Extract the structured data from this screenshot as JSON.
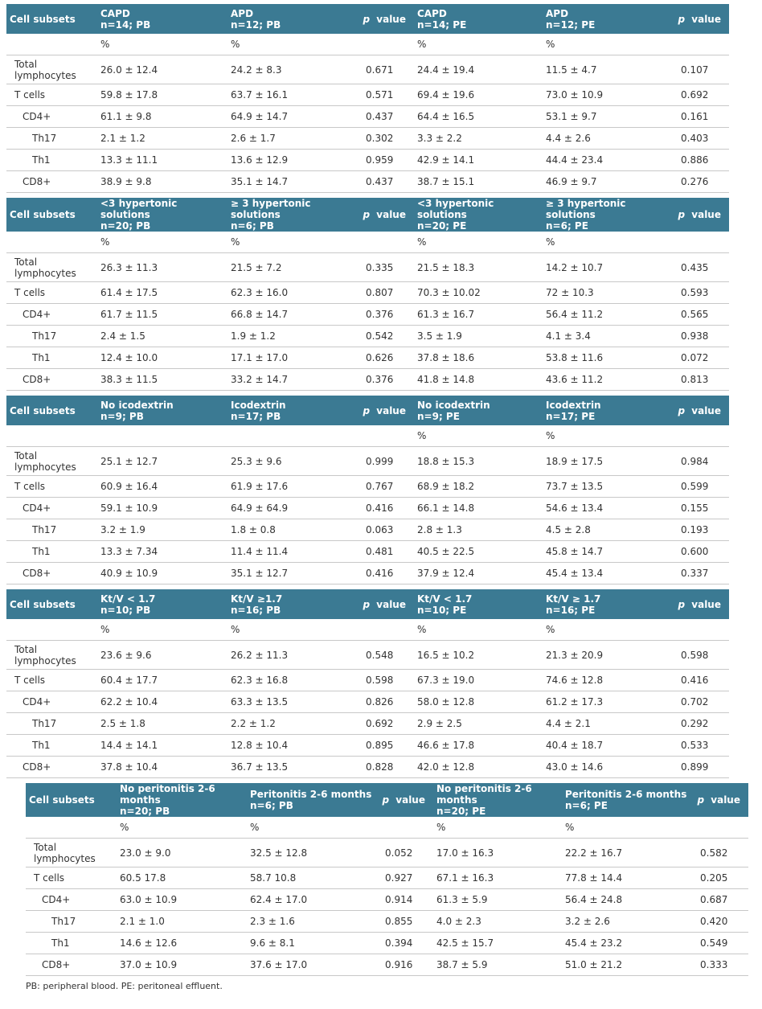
{
  "tables": [
    {
      "header": [
        "Cell subsets",
        "CAPD\nn=14; PB",
        "APD\nn=12; PB",
        "p value",
        "CAPD\nn=14; PE",
        "APD\nn=12; PE",
        "p value"
      ],
      "units": [
        null,
        "%",
        "%",
        null,
        "%",
        "%",
        null
      ],
      "rows": [
        [
          "Total lymphocytes",
          "26.0 ± 12.4",
          "24.2 ± 8.3",
          "0.671",
          "24.4 ± 19.4",
          "11.5 ± 4.7",
          "0.107"
        ],
        [
          "T cells",
          "59.8 ± 17.8",
          "63.7 ± 16.1",
          "0.571",
          "69.4 ± 19.6",
          "73.0 ± 10.9",
          "0.692"
        ],
        [
          "CD4+",
          "61.1 ± 9.8",
          "64.9 ± 14.7",
          "0.437",
          "64.4 ± 16.5",
          "53.1 ± 9.7",
          "0.161"
        ],
        [
          "Th17",
          "2.1 ± 1.2",
          "2.6 ± 1.7",
          "0.302",
          "3.3 ± 2.2",
          "4.4 ± 2.6",
          "0.403"
        ],
        [
          "Th1",
          "13.3 ± 11.1",
          "13.6 ± 12.9",
          "0.959",
          "42.9 ± 14.1",
          "44.4 ± 23.4",
          "0.886"
        ],
        [
          "CD8+",
          "38.9 ± 9.8",
          "35.1 ± 14.7",
          "0.437",
          "38.7 ± 15.1",
          "46.9 ± 9.7",
          "0.276"
        ]
      ]
    },
    {
      "header": [
        "Cell subsets",
        "<3 hypertonic solutions\nn=20; PB",
        "≥ 3 hypertonic solutions\nn=6; PB",
        "p value",
        "<3 hypertonic solutions\nn=20; PE",
        "≥ 3 hypertonic solutions\nn=6; PE",
        "p value"
      ],
      "units": [
        null,
        "%",
        "%",
        null,
        "%",
        "%",
        null
      ],
      "rows": [
        [
          "Total lymphocytes",
          "26.3 ± 11.3",
          "21.5 ± 7.2",
          "0.335",
          "21.5 ± 18.3",
          "14.2 ± 10.7",
          "0.435"
        ],
        [
          "T cells",
          "61.4 ± 17.5",
          "62.3 ± 16.0",
          "0.807",
          "70.3 ± 10.02",
          "72 ± 10.3",
          "0.593"
        ],
        [
          "CD4+",
          "61.7 ± 11.5",
          "66.8 ± 14.7",
          "0.376",
          "61.3 ± 16.7",
          "56.4 ± 11.2",
          "0.565"
        ],
        [
          "Th17",
          "2.4 ± 1.5",
          "1.9 ± 1.2",
          "0.542",
          "3.5 ± 1.9",
          "4.1 ± 3.4",
          "0.938"
        ],
        [
          "Th1",
          "12.4 ± 10.0",
          "17.1 ± 17.0",
          "0.626",
          "37.8 ± 18.6",
          "53.8 ± 11.6",
          "0.072"
        ],
        [
          "CD8+",
          "38.3 ± 11.5",
          "33.2 ± 14.7",
          "0.376",
          "41.8 ± 14.8",
          "43.6 ± 11.2",
          "0.813"
        ]
      ]
    },
    {
      "header": [
        "Cell subsets",
        "No icodextrin\nn=9; PB",
        "Icodextrin\nn=17; PB",
        "p value",
        "No icodextrin\nn=9; PE",
        "Icodextrin\nn=17; PE",
        "p value"
      ],
      "units": [
        null,
        null,
        null,
        null,
        "%",
        "%",
        null
      ],
      "rows": [
        [
          "Total lymphocytes",
          "25.1 ± 12.7",
          "25.3 ± 9.6",
          "0.999",
          "18.8 ± 15.3",
          "18.9 ± 17.5",
          "0.984"
        ],
        [
          "T cells",
          "60.9 ± 16.4",
          "61.9 ± 17.6",
          "0.767",
          "68.9 ± 18.2",
          "73.7 ± 13.5",
          "0.599"
        ],
        [
          "CD4+",
          "59.1 ± 10.9",
          "64.9 ± 64.9",
          "0.416",
          "66.1 ± 14.8",
          "54.6 ± 13.4",
          "0.155"
        ],
        [
          "Th17",
          "3.2 ± 1.9",
          "1.8 ± 0.8",
          "0.063",
          "2.8 ± 1.3",
          "4.5 ± 2.8",
          "0.193"
        ],
        [
          "Th1",
          "13.3 ± 7.34",
          "11.4 ± 11.4",
          "0.481",
          "40.5 ± 22.5",
          "45.8 ± 14.7",
          "0.600"
        ],
        [
          "CD8+",
          "40.9 ± 10.9",
          "35.1 ± 12.7",
          "0.416",
          "37.9 ± 12.4",
          "45.4 ± 13.4",
          "0.337"
        ]
      ]
    },
    {
      "header": [
        "Cell subsets",
        "Kt/V < 1.7\nn=10; PB",
        "Kt/V ≥1.7\nn=16; PB",
        "p value",
        "Kt/V < 1.7\nn=10; PE",
        "Kt/V ≥ 1.7\nn=16; PE",
        "p value"
      ],
      "units": [
        null,
        "%",
        "%",
        null,
        "%",
        "%",
        null
      ],
      "rows": [
        [
          "Total lymphocytes",
          "23.6 ± 9.6",
          "26.2 ± 11.3",
          "0.548",
          "16.5 ± 10.2",
          "21.3 ± 20.9",
          "0.598"
        ],
        [
          "T cells",
          "60.4 ± 17.7",
          "62.3 ± 16.8",
          "0.598",
          "67.3 ± 19.0",
          "74.6 ± 12.8",
          "0.416"
        ],
        [
          "CD4+",
          "62.2 ± 10.4",
          "63.3 ± 13.5",
          "0.826",
          "58.0 ± 12.8",
          "61.2 ± 17.3",
          "0.702"
        ],
        [
          "Th17",
          "2.5 ± 1.8",
          "2.2 ± 1.2",
          "0.692",
          "2.9 ± 2.5",
          "4.4 ± 2.1",
          "0.292"
        ],
        [
          "Th1",
          "14.4 ± 14.1",
          "12.8 ± 10.4",
          "0.895",
          "46.6 ± 17.8",
          "40.4 ± 18.7",
          "0.533"
        ],
        [
          "CD8+",
          "37.8 ± 10.4",
          "36.7 ± 13.5",
          "0.828",
          "42.0 ± 12.8",
          "43.0 ± 14.6",
          "0.899"
        ]
      ]
    },
    {
      "header": [
        "Cell subsets",
        "No peritonitis 2-6 months\nn=20; PB",
        "Peritonitis 2-6 months\nn=6; PB",
        "p value",
        "No peritonitis 2-6 months\nn=20; PE",
        "Peritonitis 2-6 months\nn=6; PE",
        "p value"
      ],
      "units": [
        null,
        "%",
        "%",
        null,
        "%",
        "%",
        null
      ],
      "rows": [
        [
          "Total lymphocytes",
          "23.0 ± 9.0",
          "32.5 ± 12.8",
          "0.052",
          "17.0 ± 16.3",
          "22.2 ± 16.7",
          "0.582"
        ],
        [
          "T cells",
          "60.5 17.8",
          "58.7 10.8",
          "0.927",
          "67.1 ± 16.3",
          "77.8 ± 14.4",
          "0.205"
        ],
        [
          "CD4+",
          "63.0 ± 10.9",
          "62.4 ± 17.0",
          "0.914",
          "61.3 ± 5.9",
          "56.4 ± 24.8",
          "0.687"
        ],
        [
          "Th17",
          "2.1 ± 1.0",
          "2.3 ± 1.6",
          "0.855",
          "4.0 ± 2.3",
          "3.2 ± 2.6",
          "0.420"
        ],
        [
          "Th1",
          "14.6 ± 12.6",
          "9.6 ± 8.1",
          "0.394",
          "42.5 ± 15.7",
          "45.4 ± 23.2",
          "0.549"
        ],
        [
          "CD8+",
          "37.0 ± 10.9",
          "37.6 ± 17.0",
          "0.916",
          "38.7 ± 5.9",
          "51.0 ± 21.2",
          "0.333"
        ]
      ]
    }
  ],
  "footnote": "PB: peripheral blood. PE: peritoneal effluent."
}
